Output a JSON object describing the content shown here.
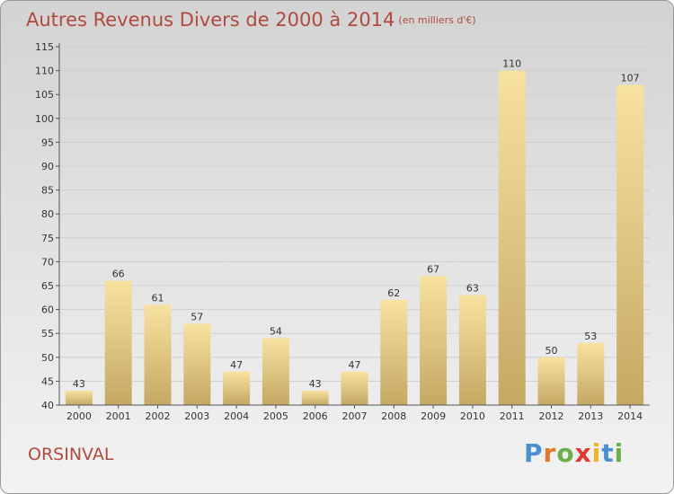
{
  "title": "Autres Revenus Divers de 2000 à 2014",
  "unit_note": "(en milliers d'€)",
  "location": "ORSINVAL",
  "logo": {
    "letters": [
      "P",
      "r",
      "o",
      "x",
      "i",
      "t",
      "i"
    ],
    "colors": [
      "#4a8fd1",
      "#e07a2a",
      "#6ab04c",
      "#e23a2f",
      "#f0b428",
      "#4a8fd1",
      "#6ab04c"
    ]
  },
  "colors": {
    "bar_top": "#f8e2a0",
    "bar_bottom": "#c4a864",
    "axis": "#555555",
    "grid": "#cfcfcf",
    "title": "#b14a3e"
  },
  "chart_data": {
    "type": "bar",
    "categories": [
      "2000",
      "2001",
      "2002",
      "2003",
      "2004",
      "2005",
      "2006",
      "2007",
      "2008",
      "2009",
      "2010",
      "2011",
      "2012",
      "2013",
      "2014"
    ],
    "values": [
      43,
      66,
      61,
      57,
      47,
      54,
      43,
      47,
      62,
      67,
      63,
      110,
      50,
      53,
      107
    ],
    "ylim": [
      40,
      115
    ],
    "yticks": [
      40,
      45,
      50,
      55,
      60,
      65,
      70,
      75,
      80,
      85,
      90,
      95,
      100,
      105,
      110,
      115
    ],
    "grid": true,
    "data_labels": true
  }
}
